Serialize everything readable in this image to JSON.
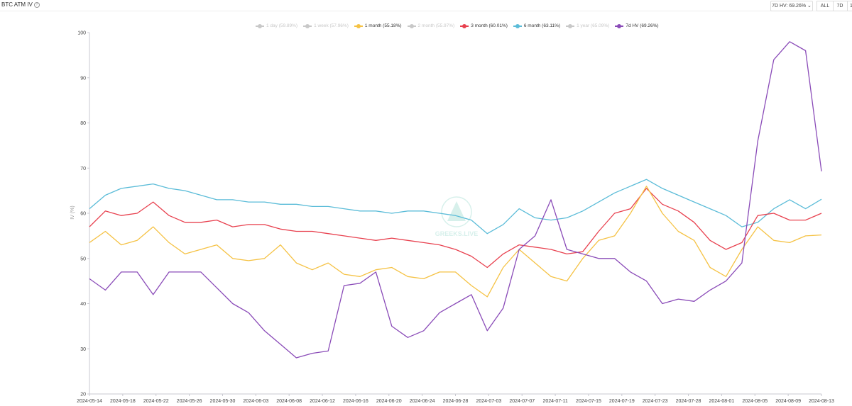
{
  "header": {
    "title": "BTC ATM IV",
    "hv_select": "7D HV: 69.26%",
    "range_buttons": [
      "ALL",
      "7D",
      "1"
    ]
  },
  "watermark": "GREEKS.LIVE",
  "chart_data": {
    "type": "line",
    "title": "BTC ATM IV",
    "xlabel": "",
    "ylabel": "IV (%)",
    "ylim": [
      20,
      100
    ],
    "yticks": [
      20,
      30,
      40,
      50,
      60,
      70,
      80,
      90,
      100
    ],
    "xticks": [
      "2024-05-14",
      "2024-05-18",
      "2024-05-22",
      "2024-05-26",
      "2024-05-30",
      "2024-06-03",
      "2024-06-08",
      "2024-06-12",
      "2024-06-16",
      "2024-06-20",
      "2024-06-24",
      "2024-06-28",
      "2024-07-03",
      "2024-07-07",
      "2024-07-11",
      "2024-07-15",
      "2024-07-19",
      "2024-07-23",
      "2024-07-28",
      "2024-08-01",
      "2024-08-05",
      "2024-08-09",
      "2024-08-13"
    ],
    "x_range": [
      "2024-05-14",
      "2024-08-13"
    ],
    "grid": false,
    "legend_position": "top-center",
    "legend": [
      {
        "label": "1 day (59.89%)",
        "color": "#c8c8c8",
        "active": false
      },
      {
        "label": "1 week (57.96%)",
        "color": "#c8c8c8",
        "active": false
      },
      {
        "label": "1 month (55.18%)",
        "color": "#f5c244",
        "active": true
      },
      {
        "label": "2 month (55.97%)",
        "color": "#c8c8c8",
        "active": false
      },
      {
        "label": "3 month (60.01%)",
        "color": "#e8414f",
        "active": true
      },
      {
        "label": "6 month (63.11%)",
        "color": "#5bbcd8",
        "active": true
      },
      {
        "label": "1 year (65.09%)",
        "color": "#c8c8c8",
        "active": false
      },
      {
        "label": "7d HV (69.26%)",
        "color": "#8a4bb8",
        "active": true
      }
    ],
    "series": [
      {
        "name": "6 month",
        "color": "#5bbcd8",
        "values": [
          61,
          64,
          65.5,
          66,
          66.5,
          65.5,
          65,
          64,
          63,
          63,
          62.5,
          62.5,
          62,
          62,
          61.5,
          61.5,
          61,
          60.5,
          60.5,
          60,
          60.5,
          60.5,
          60,
          59.5,
          58.5,
          55.5,
          57.5,
          61,
          59,
          58.5,
          59,
          60.5,
          62.5,
          64.5,
          66,
          67.5,
          65.5,
          64,
          62.5,
          61,
          59.5,
          57,
          58,
          61,
          63,
          61,
          63.1
        ]
      },
      {
        "name": "3 month",
        "color": "#e8414f",
        "values": [
          57,
          60.5,
          59.5,
          60,
          62.5,
          59.5,
          58,
          58,
          58.5,
          57,
          57.5,
          57.5,
          56.5,
          56,
          56,
          55.5,
          55,
          54.5,
          54,
          54.5,
          54,
          53.5,
          53,
          52,
          50.5,
          48,
          51,
          53,
          52.5,
          52,
          51,
          51.5,
          56,
          60,
          61,
          65.5,
          62,
          60.5,
          58,
          54,
          52,
          53.5,
          59.5,
          60,
          58.5,
          58.5,
          60
        ]
      },
      {
        "name": "1 month",
        "color": "#f5c244",
        "values": [
          53.5,
          56,
          53,
          54,
          57,
          53.5,
          51,
          52,
          53,
          50,
          49.5,
          50,
          53,
          49,
          47.5,
          49,
          46.5,
          46,
          47.5,
          48,
          46,
          45.5,
          47,
          47,
          44,
          41.5,
          48,
          52,
          49,
          46,
          45,
          50,
          54,
          55,
          60,
          66,
          60,
          56,
          54,
          48,
          46,
          52,
          57,
          54,
          53.5,
          55,
          55.2
        ]
      },
      {
        "name": "7d HV",
        "color": "#8a4bb8",
        "values": [
          45.5,
          43,
          47,
          47,
          42,
          47,
          47,
          47,
          43.5,
          40,
          38,
          34,
          31,
          28,
          29,
          29.5,
          44,
          44.5,
          47,
          35,
          32.5,
          34,
          38,
          40,
          42,
          34,
          39,
          52,
          55,
          63,
          52,
          51,
          50,
          50,
          47,
          45,
          40,
          41,
          40.5,
          43,
          45,
          49,
          76,
          94,
          98,
          96,
          69.3
        ]
      }
    ]
  }
}
